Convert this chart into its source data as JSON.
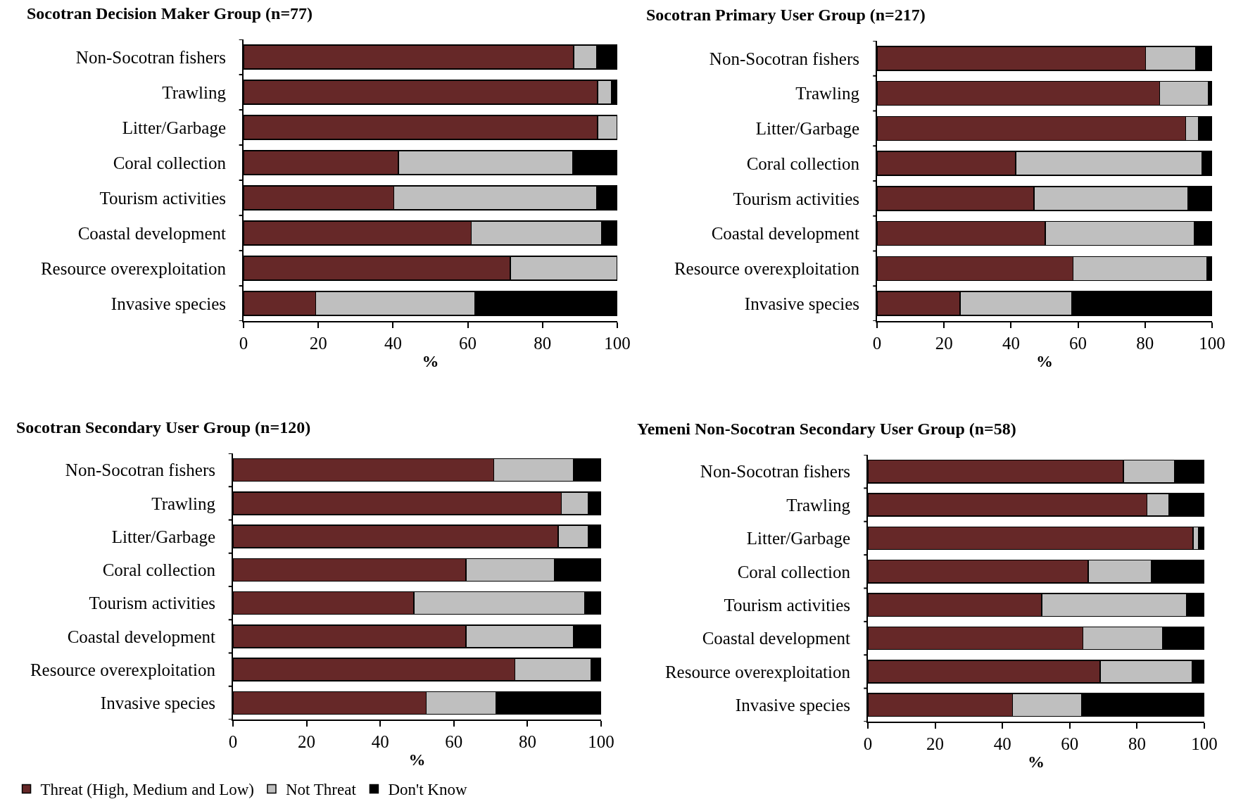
{
  "chart_data": [
    {
      "type": "bar",
      "title": "Socotran Decision Maker Group (n=77)",
      "orientation": "horizontal",
      "stacked": true,
      "xlabel": "%",
      "xlim": [
        0,
        100
      ],
      "xticks": [
        0,
        20,
        40,
        60,
        80,
        100
      ],
      "legend": "bottom",
      "categories": [
        "Non-Socotran fishers",
        "Trawling",
        "Litter/Garbage",
        "Coral collection",
        "Tourism activities",
        "Coastal development",
        "Resource overexploitation",
        "Invasive species"
      ],
      "series": [
        {
          "name": "Threat (High, Medium and Low)",
          "color": "#662828",
          "values": [
            88.3,
            94.7,
            94.7,
            41.4,
            40.2,
            60.9,
            71.4,
            19.3
          ]
        },
        {
          "name": "Not Threat",
          "color": "#bfbfbf",
          "values": [
            6.2,
            3.8,
            5.3,
            46.7,
            54.3,
            34.9,
            28.6,
            42.7
          ]
        },
        {
          "name": "Don't Know",
          "color": "#000000",
          "values": [
            5.5,
            1.5,
            0,
            11.9,
            5.5,
            4.2,
            0,
            38.0
          ]
        }
      ]
    },
    {
      "type": "bar",
      "title": "Socotran Primary User Group (n=217)",
      "orientation": "horizontal",
      "stacked": true,
      "xlabel": "%",
      "xlim": [
        0,
        100
      ],
      "xticks": [
        0,
        20,
        40,
        60,
        80,
        100
      ],
      "categories": [
        "Non-Socotran fishers",
        "Trawling",
        "Litter/Garbage",
        "Coral collection",
        "Tourism activities",
        "Coastal development",
        "Resource overexploitation",
        "Invasive species"
      ],
      "series": [
        {
          "name": "Threat (High, Medium and Low)",
          "color": "#662828",
          "values": [
            80.1,
            84.4,
            92.1,
            41.4,
            46.9,
            50.2,
            58.5,
            24.8
          ]
        },
        {
          "name": "Not Threat",
          "color": "#bfbfbf",
          "values": [
            15.0,
            14.4,
            3.9,
            55.6,
            45.9,
            44.4,
            39.9,
            33.4
          ]
        },
        {
          "name": "Don't Know",
          "color": "#000000",
          "values": [
            4.9,
            1.2,
            4.0,
            3.0,
            7.2,
            5.4,
            1.6,
            41.8
          ]
        }
      ]
    },
    {
      "type": "bar",
      "title": "Socotran Secondary User Group (n=120)",
      "orientation": "horizontal",
      "stacked": true,
      "xlabel": "%",
      "xlim": [
        0,
        100
      ],
      "xticks": [
        0,
        20,
        40,
        60,
        80,
        100
      ],
      "categories": [
        "Non-Socotran fishers",
        "Trawling",
        "Litter/Garbage",
        "Coral collection",
        "Tourism activities",
        "Coastal development",
        "Resource overexploitation",
        "Invasive species"
      ],
      "series": [
        {
          "name": "Threat (High, Medium and Low)",
          "color": "#662828",
          "values": [
            70.8,
            89.2,
            88.3,
            63.3,
            49.1,
            63.3,
            76.6,
            52.5
          ]
        },
        {
          "name": "Not Threat",
          "color": "#bfbfbf",
          "values": [
            21.6,
            7.3,
            8.2,
            24.0,
            46.5,
            29.1,
            20.7,
            18.9
          ]
        },
        {
          "name": "Don't Know",
          "color": "#000000",
          "values": [
            7.6,
            3.5,
            3.5,
            12.7,
            4.4,
            7.6,
            2.7,
            28.6
          ]
        }
      ]
    },
    {
      "type": "bar",
      "title": "Yemeni Non-Socotran Secondary User Group (n=58)",
      "orientation": "horizontal",
      "stacked": true,
      "xlabel": "%",
      "xlim": [
        0,
        100
      ],
      "xticks": [
        0,
        20,
        40,
        60,
        80,
        100
      ],
      "categories": [
        "Non-Socotran fishers",
        "Trawling",
        "Litter/Garbage",
        "Coral collection",
        "Tourism activities",
        "Coastal development",
        "Resource overexploitation",
        "Invasive species"
      ],
      "series": [
        {
          "name": "Threat (High, Medium and Low)",
          "color": "#662828",
          "values": [
            75.9,
            82.9,
            96.6,
            65.5,
            51.7,
            63.9,
            69.0,
            43.0
          ]
        },
        {
          "name": "Not Threat",
          "color": "#bfbfbf",
          "values": [
            15.3,
            6.5,
            1.6,
            18.8,
            43.0,
            23.8,
            27.4,
            20.5
          ]
        },
        {
          "name": "Don't Know",
          "color": "#000000",
          "values": [
            8.8,
            10.6,
            1.8,
            15.7,
            5.3,
            12.3,
            3.6,
            36.5
          ]
        }
      ]
    }
  ]
}
